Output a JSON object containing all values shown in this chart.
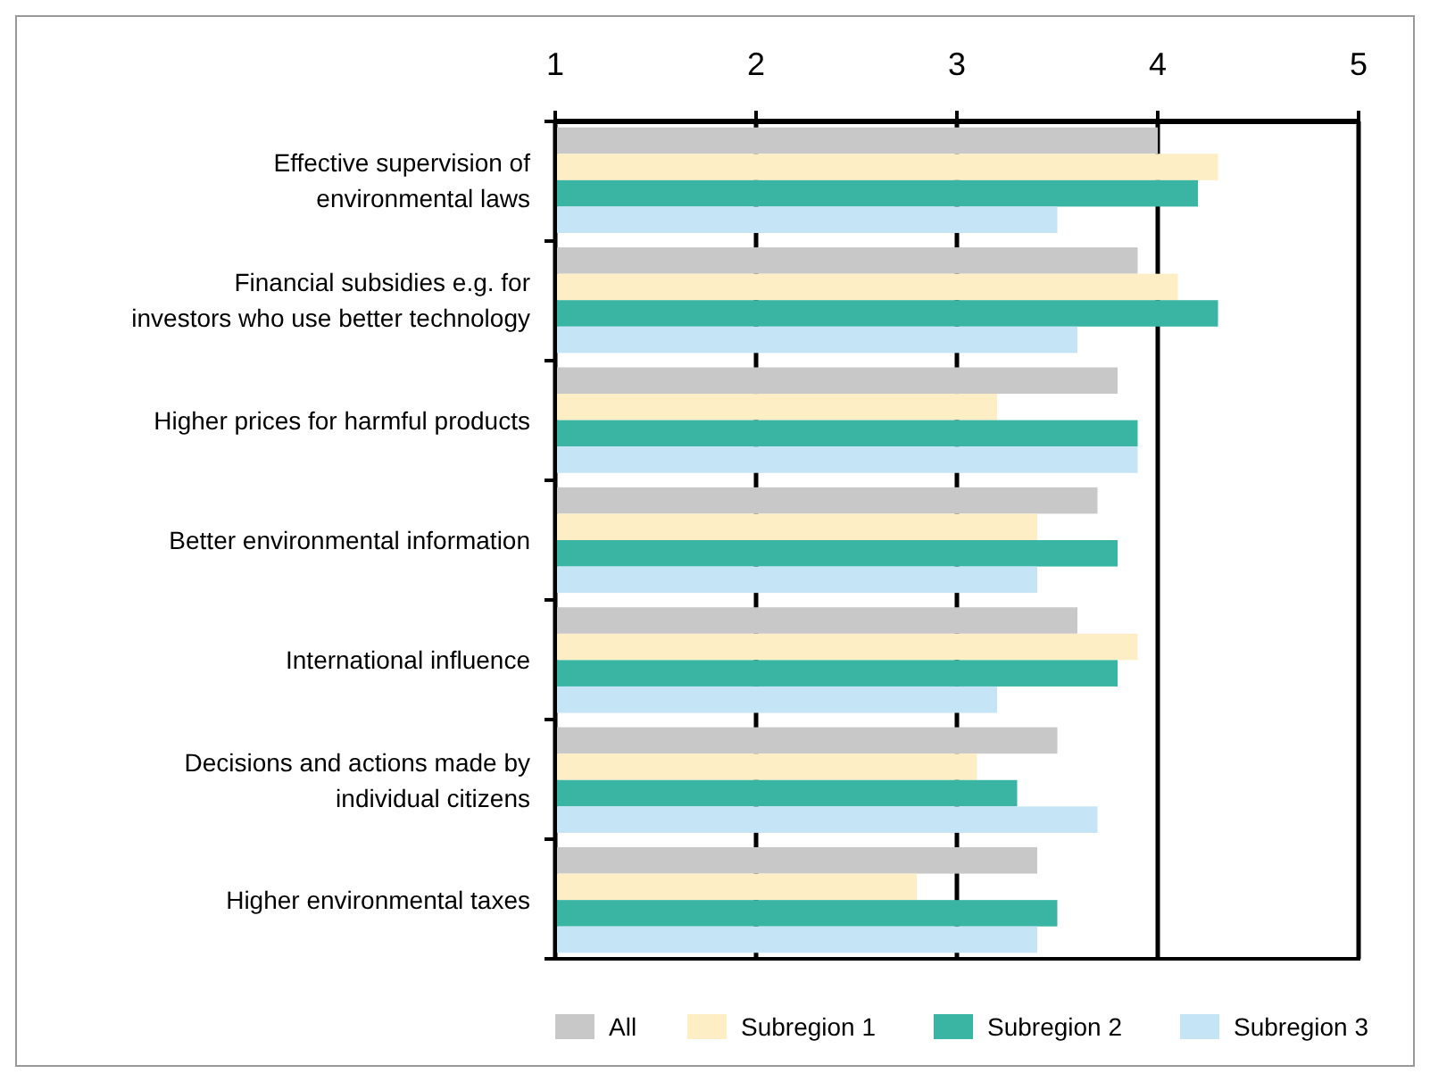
{
  "chart_data": {
    "type": "bar",
    "orientation": "horizontal",
    "categories": [
      "Effective supervision of environmental laws",
      "Financial subsidies e.g. for investors who use better technology",
      "Higher prices for harmful products",
      "Better environmental information",
      "International influence",
      "Decisions and actions made by individual citizens",
      "Higher environmental taxes"
    ],
    "series": [
      {
        "name": "All",
        "color": "#c8c8c8",
        "values": [
          4.0,
          3.9,
          3.8,
          3.7,
          3.6,
          3.5,
          3.4
        ]
      },
      {
        "name": "Subregion 1",
        "color": "#fdeec6",
        "values": [
          4.3,
          4.1,
          3.2,
          3.4,
          3.9,
          3.1,
          2.8
        ]
      },
      {
        "name": "Subregion 2",
        "color": "#3ab5a4",
        "values": [
          4.2,
          4.3,
          3.9,
          3.8,
          3.8,
          3.3,
          3.5
        ]
      },
      {
        "name": "Subregion 3",
        "color": "#c5e4f5",
        "values": [
          3.5,
          3.6,
          3.9,
          3.4,
          3.2,
          3.7,
          3.4
        ]
      }
    ],
    "xlim": [
      1,
      5
    ],
    "xticks": [
      1,
      2,
      3,
      4,
      5
    ],
    "grid": "x",
    "legend": "bottom"
  }
}
